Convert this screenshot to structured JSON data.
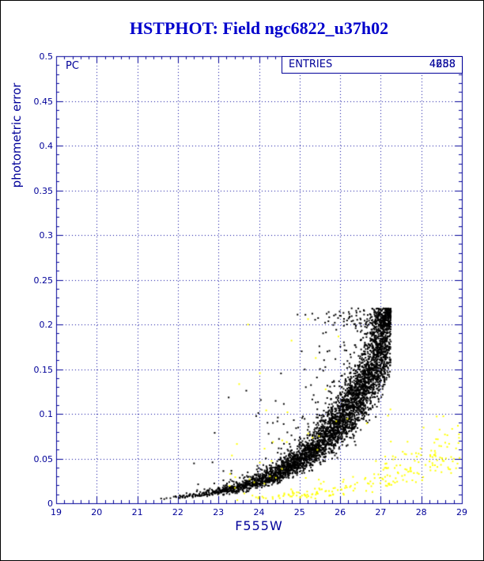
{
  "page": {
    "background": "#ffffff",
    "border_color": "#000000"
  },
  "chart_data": {
    "type": "scatter",
    "title": "HSTPHOT: Field ngc6822_u37h02",
    "title_color": "#0000cc",
    "axis_color": "#000099",
    "xlabel": "F555W",
    "ylabel": "photometric error",
    "xlim": [
      19,
      29
    ],
    "ylim": [
      0,
      0.5
    ],
    "grid": "dotted",
    "x_ticks": [
      {
        "value": 19,
        "label": "19"
      },
      {
        "value": 20,
        "label": "20"
      },
      {
        "value": 21,
        "label": "21"
      },
      {
        "value": 22,
        "label": "22"
      },
      {
        "value": 23,
        "label": "23"
      },
      {
        "value": 24,
        "label": "24"
      },
      {
        "value": 25,
        "label": "25"
      },
      {
        "value": 26,
        "label": "26"
      },
      {
        "value": 27,
        "label": "27"
      },
      {
        "value": 28,
        "label": "28"
      },
      {
        "value": 29,
        "label": "29"
      }
    ],
    "y_ticks": [
      {
        "value": 0,
        "label": "0"
      },
      {
        "value": 0.05,
        "label": "0.05"
      },
      {
        "value": 0.1,
        "label": "0.1"
      },
      {
        "value": 0.15,
        "label": "0.15"
      },
      {
        "value": 0.2,
        "label": "0.2"
      },
      {
        "value": 0.25,
        "label": "0.25"
      },
      {
        "value": 0.3,
        "label": "0.3"
      },
      {
        "value": 0.35,
        "label": "0.35"
      },
      {
        "value": 0.4,
        "label": "0.4"
      },
      {
        "value": 0.45,
        "label": "0.45"
      },
      {
        "value": 0.5,
        "label": "0.5"
      }
    ],
    "annotations": {
      "detector_label": "PC"
    },
    "stats": {
      "entries_label": "ENTRIES",
      "entries_values": [
        "4688",
        "4258"
      ]
    },
    "series": [
      {
        "name": "pc-stars-error-locus",
        "color": "#000000",
        "marker_px": 2,
        "seed": 20231,
        "components": [
          {
            "kind": "locus",
            "n": 4300,
            "mag_min": 21.35,
            "mag_max": 27.25,
            "mag_power": 0.35,
            "err0": 0.0045,
            "mag_ref": 21.3,
            "scale": 1.556,
            "spread": 0.17,
            "outlier_frac": 0.06,
            "outlier_boost": 0.8,
            "err_cap": 0.218,
            "err_floor": 0.003
          }
        ]
      },
      {
        "name": "flagged-stars-error-locus",
        "color": "#ffff00",
        "marker_px": 2,
        "seed": 777,
        "components": [
          {
            "kind": "locus",
            "n": 200,
            "mag_min": 23.3,
            "mag_max": 29.0,
            "mag_power": 0.55,
            "err0": 0.0035,
            "mag_ref": 23.3,
            "scale": 1.85,
            "spread": 0.28,
            "outlier_frac": 0.04,
            "outlier_boost": 0.8,
            "err_cap": 0.1,
            "err_floor": 0.003
          },
          {
            "kind": "cloud",
            "n": 62,
            "mag_min": 23.2,
            "mag_max": 27.3,
            "err_min": 0.008,
            "err_max": 0.21
          }
        ]
      }
    ]
  }
}
